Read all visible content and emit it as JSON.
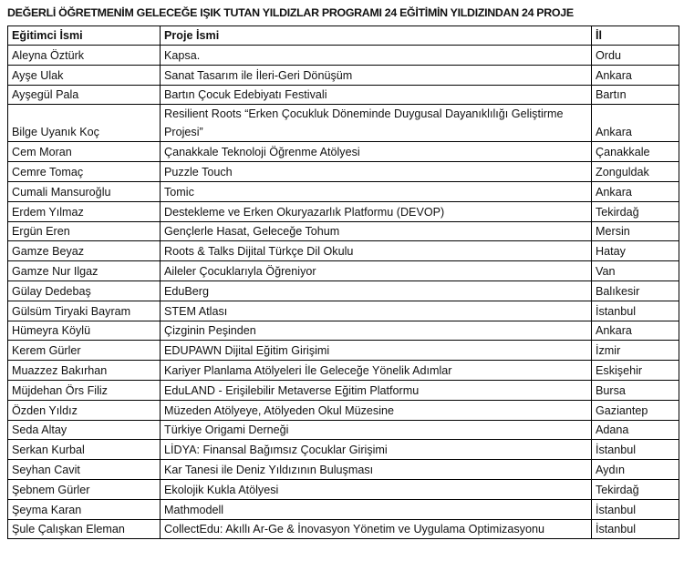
{
  "title": "DEĞERLİ ÖĞRETMENİM GELECEĞE IŞIK TUTAN YILDIZLAR PROGRAMI 24 EĞİTİMİN YILDIZINDAN 24 PROJE",
  "headers": [
    "Eğitimci İsmi",
    "Proje İsmi",
    "İl"
  ],
  "rows": [
    [
      "Aleyna Öztürk",
      "Kapsa.",
      "Ordu"
    ],
    [
      "Ayşe Ulak",
      "Sanat Tasarım ile İleri-Geri Dönüşüm",
      "Ankara"
    ],
    [
      "Ayşegül Pala",
      "Bartın Çocuk Edebiyatı Festivali",
      "Bartın"
    ],
    [
      "Bilge Uyanık Koç",
      "Resilient Roots “Erken Çocukluk Döneminde Duygusal Dayanıklılığı Geliştirme Projesi”",
      "Ankara"
    ],
    [
      "Cem Moran",
      "Çanakkale Teknoloji Öğrenme Atölyesi",
      "Çanakkale"
    ],
    [
      "Cemre Tomaç",
      "Puzzle Touch",
      "Zonguldak"
    ],
    [
      "Cumali Mansuroğlu",
      "Tomic",
      "Ankara"
    ],
    [
      "Erdem Yılmaz",
      "Destekleme ve Erken Okuryazarlık Platformu (DEVOP)",
      "Tekirdağ"
    ],
    [
      "Ergün Eren",
      "Gençlerle Hasat, Geleceğe Tohum",
      "Mersin"
    ],
    [
      "Gamze Beyaz",
      "Roots & Talks Dijital Türkçe Dil Okulu",
      "Hatay"
    ],
    [
      "Gamze Nur Ilgaz",
      "Aileler Çocuklarıyla Öğreniyor",
      "Van"
    ],
    [
      "Gülay Dedebaş",
      "EduBerg",
      "Balıkesir"
    ],
    [
      "Gülsüm Tiryaki Bayram",
      "STEM Atlası",
      "İstanbul"
    ],
    [
      "Hümeyra Köylü",
      "Çizginin Peşinden",
      "Ankara"
    ],
    [
      "Kerem Gürler",
      "EDUPAWN Dijital Eğitim Girişimi",
      "İzmir"
    ],
    [
      "Muazzez Bakırhan",
      "Kariyer Planlama Atölyeleri İle Geleceğe Yönelik Adımlar",
      "Eskişehir"
    ],
    [
      "Müjdehan Örs Filiz",
      "EduLAND - Erişilebilir Metaverse Eğitim Platformu",
      "Bursa"
    ],
    [
      "Özden Yıldız",
      "Müzeden Atölyeye, Atölyeden Okul Müzesine",
      "Gaziantep"
    ],
    [
      "Seda Altay",
      "Türkiye Origami Derneği",
      "Adana"
    ],
    [
      "Serkan Kurbal",
      "LİDYA: Finansal Bağımsız Çocuklar Girişimi",
      "İstanbul"
    ],
    [
      "Seyhan Cavit",
      "Kar Tanesi ile Deniz Yıldızının Buluşması",
      "Aydın"
    ],
    [
      "Şebnem Gürler",
      "Ekolojik Kukla Atölyesi",
      "Tekirdağ"
    ],
    [
      "Şeyma Karan",
      "Mathmodell",
      "İstanbul"
    ],
    [
      "Şule Çalışkan Eleman",
      "CollectEdu: Akıllı Ar-Ge & İnovasyon Yönetim ve Uygulama Optimizasyonu",
      "İstanbul"
    ]
  ]
}
